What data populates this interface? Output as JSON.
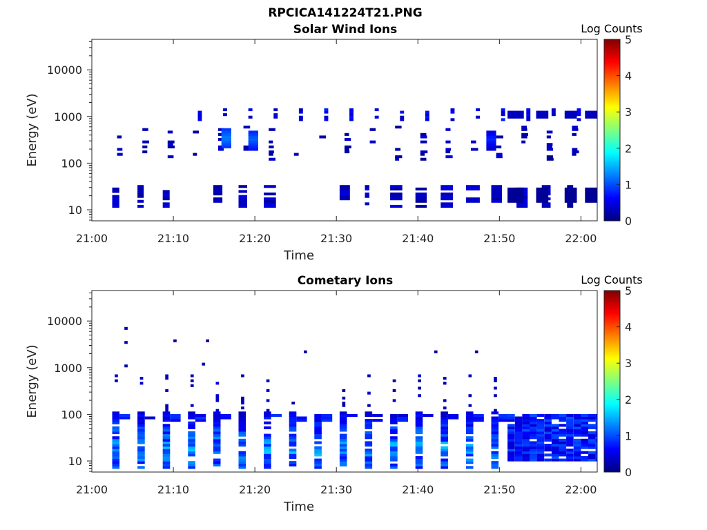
{
  "figure": {
    "title": "RPCICA141224T21.PNG"
  },
  "colorbar": {
    "label": "Log Counts",
    "ticks": [
      "0",
      "1",
      "2",
      "3",
      "4",
      "5"
    ],
    "range": [
      0,
      5
    ],
    "colormap": "jet"
  },
  "chart_data": [
    {
      "type": "heatmap",
      "title": "Solar Wind Ions",
      "xlabel": "Time",
      "ylabel": "Energy (eV)",
      "xticks": [
        "21:00",
        "21:10",
        "21:20",
        "21:30",
        "21:40",
        "21:50",
        "22:00"
      ],
      "yticks": [
        "10",
        "100",
        "1000",
        "10000"
      ],
      "xlim": [
        "21:00",
        "22:02"
      ],
      "yscale": "log",
      "ylim": [
        5.8,
        45000
      ],
      "clim": [
        0,
        5
      ],
      "description_values": "Sparse detections mostly 0-1 log counts; bands near 1000 eV, 200-500 eV and 12-30 eV; peaks ~1.2 near 350 eV at 21:16 and 21:20.",
      "cells": []
    },
    {
      "type": "heatmap",
      "title": "Cometary Ions",
      "xlabel": "Time",
      "ylabel": "Energy (eV)",
      "xticks": [
        "21:00",
        "21:10",
        "21:20",
        "21:30",
        "21:40",
        "21:50",
        "22:00"
      ],
      "yticks": [
        "10",
        "100",
        "1000",
        "10000"
      ],
      "xlim": [
        "21:00",
        "22:02"
      ],
      "yscale": "log",
      "ylim": [
        5.8,
        45000
      ],
      "clim": [
        0,
        5
      ],
      "description_values": "Periodic bursts every ~3 min from 21:02 to 21:52 spanning ~7-300 eV, peak ~1.7 log counts near 10-30 eV; continuous 0.4-1 band 10-100 eV after 21:50.",
      "cells": []
    }
  ]
}
